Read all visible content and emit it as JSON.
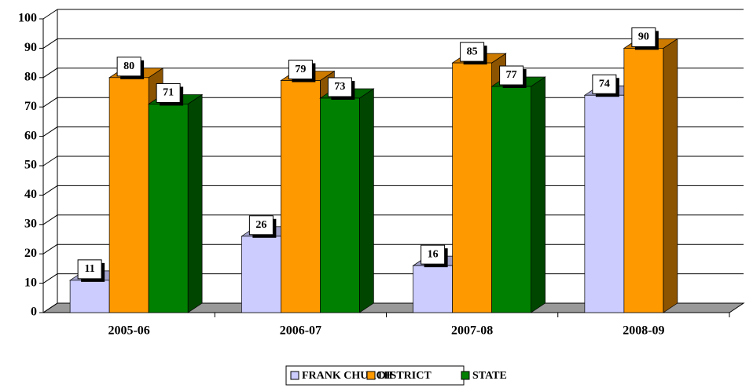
{
  "chart_data": {
    "type": "bar",
    "categories": [
      "2005-06",
      "2006-07",
      "2007-08",
      "2008-09"
    ],
    "series": [
      {
        "name": "FRANK CHURCH",
        "color": "#ccccff",
        "values": [
          11,
          26,
          16,
          74
        ]
      },
      {
        "name": "DISTRICT",
        "color": "#ff9900",
        "values": [
          80,
          79,
          85,
          90
        ]
      },
      {
        "name": "STATE",
        "color": "#008000",
        "values": [
          71,
          73,
          77,
          null
        ]
      }
    ],
    "ylim": [
      0,
      100
    ],
    "yticks": [
      0,
      10,
      20,
      30,
      40,
      50,
      60,
      70,
      80,
      90,
      100
    ],
    "grid": true,
    "legend": "bottom"
  }
}
